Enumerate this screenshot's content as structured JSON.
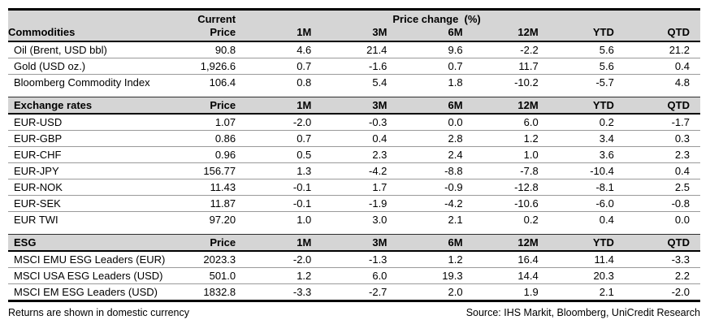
{
  "table": {
    "header_top": {
      "current_label": "Current",
      "price_change_label": "Price change  (%)"
    },
    "columns": [
      "Price",
      "1M",
      "3M",
      "6M",
      "12M",
      "YTD",
      "QTD"
    ],
    "sections": [
      {
        "title": "Commodities",
        "rows": [
          {
            "label": "Oil (Brent, USD bbl)",
            "values": [
              "90.8",
              "4.6",
              "21.4",
              "9.6",
              "-2.2",
              "5.6",
              "21.2"
            ]
          },
          {
            "label": "Gold (USD oz.)",
            "values": [
              "1,926.6",
              "0.7",
              "-1.6",
              "0.7",
              "11.7",
              "5.6",
              "0.4"
            ]
          },
          {
            "label": "Bloomberg Commodity Index",
            "values": [
              "106.4",
              "0.8",
              "5.4",
              "1.8",
              "-10.2",
              "-5.7",
              "4.8"
            ]
          }
        ]
      },
      {
        "title": "Exchange rates",
        "rows": [
          {
            "label": "EUR-USD",
            "values": [
              "1.07",
              "-2.0",
              "-0.3",
              "0.0",
              "6.0",
              "0.2",
              "-1.7"
            ]
          },
          {
            "label": "EUR-GBP",
            "values": [
              "0.86",
              "0.7",
              "0.4",
              "2.8",
              "1.2",
              "3.4",
              "0.3"
            ]
          },
          {
            "label": "EUR-CHF",
            "values": [
              "0.96",
              "0.5",
              "2.3",
              "2.4",
              "1.0",
              "3.6",
              "2.3"
            ]
          },
          {
            "label": "EUR-JPY",
            "values": [
              "156.77",
              "1.3",
              "-4.2",
              "-8.8",
              "-7.8",
              "-10.4",
              "0.4"
            ]
          },
          {
            "label": "EUR-NOK",
            "values": [
              "11.43",
              "-0.1",
              "1.7",
              "-0.9",
              "-12.8",
              "-8.1",
              "2.5"
            ]
          },
          {
            "label": "EUR-SEK",
            "values": [
              "11.87",
              "-0.1",
              "-1.9",
              "-4.2",
              "-10.6",
              "-6.0",
              "-0.8"
            ]
          },
          {
            "label": "EUR TWI",
            "values": [
              "97.20",
              "1.0",
              "3.0",
              "2.1",
              "0.2",
              "0.4",
              "0.0"
            ]
          }
        ]
      },
      {
        "title": "ESG",
        "rows": [
          {
            "label": "MSCI EMU ESG Leaders (EUR)",
            "values": [
              "2023.3",
              "-2.0",
              "-1.3",
              "1.2",
              "16.4",
              "11.4",
              "-3.3"
            ]
          },
          {
            "label": "MSCI USA ESG Leaders (USD)",
            "values": [
              "501.0",
              "1.2",
              "6.0",
              "19.3",
              "14.4",
              "20.3",
              "2.2"
            ]
          },
          {
            "label": "MSCI EM ESG Leaders (USD)",
            "values": [
              "1832.8",
              "-3.3",
              "-2.7",
              "2.0",
              "1.9",
              "2.1",
              "-2.0"
            ]
          }
        ]
      }
    ]
  },
  "footer": {
    "note": "Returns are shown in domestic currency",
    "source": "Source: IHS Markit, Bloomberg, UniCredit Research"
  },
  "colors": {
    "header_bg": "#d5d5d5",
    "row_separator": "#9a9a9a",
    "table_border": "#000000"
  }
}
